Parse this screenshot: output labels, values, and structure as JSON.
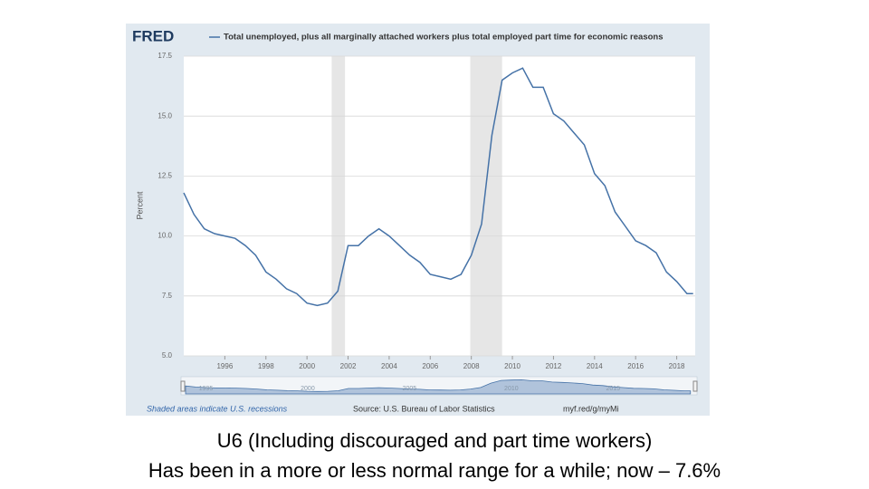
{
  "chart_data": {
    "type": "line",
    "logo": "FRED",
    "ylabel": "Percent",
    "x": [
      1994.0,
      1994.5,
      1995.0,
      1995.5,
      1996.0,
      1996.5,
      1997.0,
      1997.5,
      1998.0,
      1998.5,
      1999.0,
      1999.5,
      2000.0,
      2000.5,
      2001.0,
      2001.5,
      2002.0,
      2002.5,
      2003.0,
      2003.5,
      2004.0,
      2004.5,
      2005.0,
      2005.5,
      2006.0,
      2006.5,
      2007.0,
      2007.5,
      2008.0,
      2008.5,
      2009.0,
      2009.5,
      2010.0,
      2010.5,
      2011.0,
      2011.5,
      2012.0,
      2012.5,
      2013.0,
      2013.5,
      2014.0,
      2014.5,
      2015.0,
      2015.5,
      2016.0,
      2016.5,
      2017.0,
      2017.5,
      2018.0,
      2018.5,
      2018.8
    ],
    "series": [
      {
        "name": "Total unemployed, plus all marginally attached workers plus total employed part time for economic reasons",
        "color": "#4572a7",
        "values": [
          11.8,
          10.9,
          10.3,
          10.1,
          10.0,
          9.9,
          9.6,
          9.2,
          8.5,
          8.2,
          7.8,
          7.6,
          7.2,
          7.1,
          7.2,
          7.7,
          9.6,
          9.6,
          10.0,
          10.3,
          10.0,
          9.6,
          9.2,
          8.9,
          8.4,
          8.3,
          8.2,
          8.4,
          9.2,
          10.5,
          14.2,
          16.5,
          16.8,
          17.0,
          16.2,
          16.2,
          15.1,
          14.8,
          14.3,
          13.8,
          12.6,
          12.1,
          11.0,
          10.4,
          9.8,
          9.6,
          9.3,
          8.5,
          8.1,
          7.6,
          7.6
        ]
      }
    ],
    "recessions": [
      [
        2001.2,
        2001.85
      ],
      [
        2007.95,
        2009.5
      ]
    ],
    "xlim": [
      1994.0,
      2018.9
    ],
    "xticks": [
      1996,
      1998,
      2000,
      2002,
      2004,
      2006,
      2008,
      2010,
      2012,
      2014,
      2016,
      2018
    ],
    "ylim": [
      5,
      17.5
    ],
    "yticks": [
      {
        "value": 5,
        "label": "5.0"
      },
      {
        "value": 7.5,
        "label": "7.5"
      },
      {
        "value": 10,
        "label": "10.0"
      },
      {
        "value": 12.5,
        "label": "12.5"
      },
      {
        "value": 15,
        "label": "15.0"
      },
      {
        "value": 17.5,
        "label": "17.5"
      }
    ],
    "grid": true,
    "navigator_ticks": [
      1995,
      2000,
      2005,
      2010,
      2015
    ],
    "note": "Shaded areas indicate U.S. recessions",
    "source": "Source: U.S. Bureau of Labor Statistics",
    "link": "myf.red/g/myMi"
  },
  "caption": {
    "line1": "U6 (Including discouraged and part time workers)",
    "line2": "Has been in a more or less normal range for a while; now – 7.6%"
  }
}
